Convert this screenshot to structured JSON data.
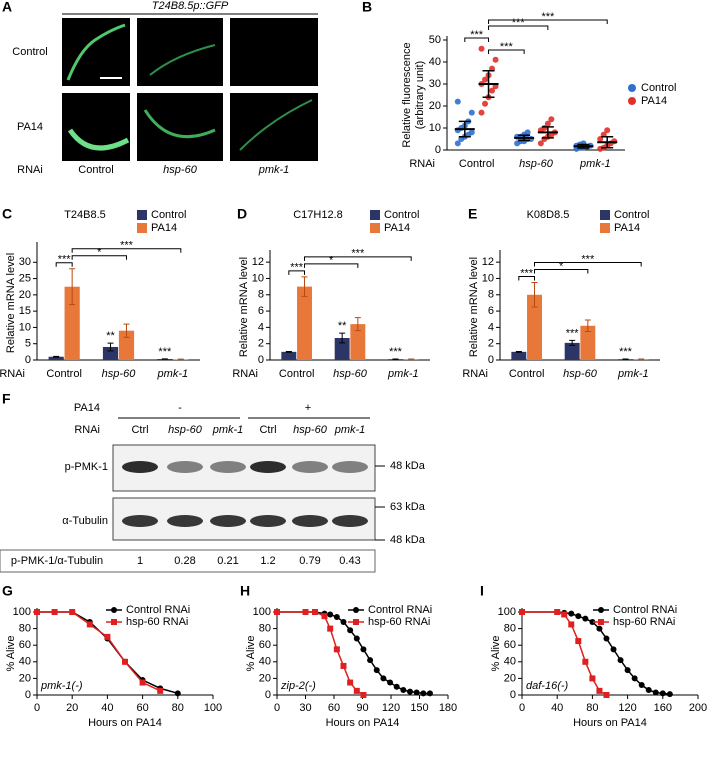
{
  "panel_a": {
    "panel": "A",
    "title": "T24B8.5p::GFP",
    "rows": [
      "Control",
      "PA14"
    ],
    "row_prefix": "RNAi",
    "columns": [
      "Control",
      "hsp-60",
      "pmk-1"
    ]
  },
  "panel_f": {
    "panel": "F",
    "treatment": "PA14",
    "groups": [
      "-",
      "+"
    ],
    "row_prefix": "RNAi",
    "lanes": [
      "Ctrl",
      "hsp-60",
      "pmk-1",
      "Ctrl",
      "hsp-60",
      "pmk-1"
    ],
    "blots": [
      "p-PMK-1",
      "α-Tubulin"
    ],
    "markers": [
      "48 kDa",
      "63 kDa",
      "48 kDa"
    ],
    "ratio_label": "p-PMK-1/α-Tubulin",
    "ratios": [
      1,
      0.28,
      0.21,
      1.2,
      0.79,
      0.43
    ]
  },
  "chart_data": [
    {
      "type": "dot",
      "panel": "B",
      "ylabel": [
        "Relative fluorescence",
        "(arbitrary unit)"
      ],
      "xprefix": "RNAi",
      "categories": [
        "Control",
        "hsp-60",
        "pmk-1"
      ],
      "series": [
        {
          "name": "Control",
          "color": "#2f6fd0",
          "values": [
            9.5,
            5.5,
            1.7
          ],
          "errors": [
            3.5,
            1.2,
            0.8
          ],
          "points": [
            [
              3,
              5,
              6,
              7,
              8,
              9,
              10,
              11,
              13,
              17,
              22
            ],
            [
              3,
              4,
              4,
              5,
              5,
              6,
              6,
              7,
              8
            ],
            [
              0.5,
              1,
              1,
              1.5,
              2,
              2,
              2.5,
              3
            ]
          ]
        },
        {
          "name": "PA14",
          "color": "#e0302a",
          "values": [
            30,
            8,
            3.5
          ],
          "errors": [
            6,
            2.5,
            2.5
          ],
          "points": [
            [
              17,
              21,
              24,
              27,
              29,
              30,
              32,
              34,
              37,
              41,
              46
            ],
            [
              3,
              5,
              6,
              7,
              8,
              9,
              10,
              12,
              14
            ],
            [
              0.5,
              1,
              2,
              3,
              4,
              5,
              7,
              9
            ]
          ]
        }
      ],
      "brackets": [
        "***",
        "***",
        "***",
        "***"
      ],
      "ylim": [
        0,
        50
      ],
      "yticks": [
        0,
        10,
        20,
        30,
        40,
        50
      ]
    },
    {
      "type": "bar",
      "panel": "C",
      "title": "T24B8.5",
      "ylabel": "Relative mRNA level",
      "xprefix": "RNAi",
      "categories": [
        "Control",
        "hsp-60",
        "pmk-1"
      ],
      "series": [
        {
          "name": "Control",
          "color": "#2b3566",
          "values": [
            1,
            4,
            0.3
          ],
          "errors": [
            0.1,
            1.2,
            0.05
          ],
          "stars": [
            null,
            "**",
            "***"
          ]
        },
        {
          "name": "PA14",
          "color": "#e8773a",
          "values": [
            22.5,
            9,
            0.2
          ],
          "errors": [
            5.5,
            2,
            0.05
          ]
        }
      ],
      "brackets": [
        "***",
        "*",
        "***"
      ],
      "ylim": [
        0,
        35
      ],
      "yticks": [
        0,
        5,
        10,
        15,
        20,
        25,
        30
      ]
    },
    {
      "type": "bar",
      "panel": "D",
      "title": "C17H12.8",
      "ylabel": "Relative mRNA level",
      "xprefix": "RNAi",
      "categories": [
        "Control",
        "hsp-60",
        "pmk-1"
      ],
      "series": [
        {
          "name": "Control",
          "color": "#2b3566",
          "values": [
            1,
            2.7,
            0.1
          ],
          "errors": [
            0.05,
            0.6,
            0.03
          ],
          "stars": [
            null,
            "**",
            "***"
          ]
        },
        {
          "name": "PA14",
          "color": "#e8773a",
          "values": [
            9,
            4.4,
            0.1
          ],
          "errors": [
            1.2,
            0.8,
            0.03
          ]
        }
      ],
      "brackets": [
        "***",
        "*",
        "***"
      ],
      "ylim": [
        0,
        13
      ],
      "yticks": [
        0,
        2,
        4,
        6,
        8,
        10,
        12
      ]
    },
    {
      "type": "bar",
      "panel": "E",
      "title": "K08D8.5",
      "ylabel": "Relative mRNA level",
      "xprefix": "RNAi",
      "categories": [
        "Control",
        "hsp-60",
        "pmk-1"
      ],
      "series": [
        {
          "name": "Control",
          "color": "#2b3566",
          "values": [
            1,
            2.1,
            0.1
          ],
          "errors": [
            0.05,
            0.3,
            0.03
          ],
          "stars": [
            null,
            "***",
            "***"
          ]
        },
        {
          "name": "PA14",
          "color": "#e8773a",
          "values": [
            8,
            4.2,
            0.1
          ],
          "errors": [
            1.5,
            0.7,
            0.03
          ]
        }
      ],
      "brackets": [
        "***",
        "*",
        "***"
      ],
      "ylim": [
        0,
        13
      ],
      "yticks": [
        0,
        2,
        4,
        6,
        8,
        10,
        12
      ]
    },
    {
      "type": "line",
      "panel": "G",
      "annotation": "pmk-1(-)",
      "xlabel": "Hours on PA14",
      "ylabel": "% Alive",
      "series": [
        {
          "name": "Control RNAi",
          "color": "#000000",
          "marker": "circle",
          "x": [
            0,
            10,
            20,
            30,
            40,
            50,
            60,
            70,
            80
          ],
          "values": [
            100,
            100,
            100,
            88,
            68,
            40,
            18,
            8,
            2
          ]
        },
        {
          "name": "hsp-60 RNAi",
          "color": "#e02020",
          "marker": "square",
          "x": [
            0,
            10,
            20,
            30,
            40,
            50,
            60,
            70
          ],
          "values": [
            100,
            100,
            100,
            85,
            70,
            40,
            15,
            5
          ]
        }
      ],
      "xlim": [
        0,
        100
      ],
      "xticks": [
        0,
        20,
        40,
        60,
        80,
        100
      ],
      "ylim": [
        0,
        100
      ],
      "yticks": [
        0,
        20,
        40,
        60,
        80,
        100
      ]
    },
    {
      "type": "line",
      "panel": "H",
      "annotation": "zip-2(-)",
      "xlabel": "Hours on PA14",
      "ylabel": "% Alive",
      "series": [
        {
          "name": "Control RNAi",
          "color": "#000000",
          "marker": "circle",
          "x": [
            0,
            30,
            40,
            50,
            56,
            63,
            70,
            77,
            84,
            91,
            98,
            105,
            112,
            119,
            126,
            133,
            140,
            147,
            154,
            161
          ],
          "values": [
            100,
            100,
            100,
            98,
            97,
            94,
            88,
            78,
            68,
            55,
            42,
            30,
            20,
            15,
            10,
            6,
            4,
            3,
            2,
            2
          ]
        },
        {
          "name": "hsp-60 RNAi",
          "color": "#e02020",
          "marker": "square",
          "x": [
            0,
            30,
            40,
            50,
            56,
            63,
            70,
            77,
            84,
            91
          ],
          "values": [
            100,
            100,
            100,
            95,
            80,
            55,
            35,
            15,
            5,
            0
          ]
        }
      ],
      "xlim": [
        0,
        180
      ],
      "xticks": [
        0,
        30,
        60,
        90,
        120,
        150,
        180
      ],
      "ylim": [
        0,
        100
      ],
      "yticks": [
        0,
        20,
        40,
        60,
        80,
        100
      ]
    },
    {
      "type": "line",
      "panel": "I",
      "annotation": "daf-16(-)",
      "xlabel": "Hours on PA14",
      "ylabel": "% Alive",
      "series": [
        {
          "name": "Control RNAi",
          "color": "#000000",
          "marker": "circle",
          "x": [
            0,
            40,
            48,
            56,
            64,
            72,
            80,
            88,
            96,
            104,
            112,
            120,
            128,
            136,
            144,
            152,
            160,
            168
          ],
          "values": [
            100,
            100,
            99,
            98,
            95,
            92,
            88,
            80,
            68,
            55,
            42,
            30,
            20,
            12,
            6,
            3,
            2,
            1
          ]
        },
        {
          "name": "hsp-60 RNAi",
          "color": "#e02020",
          "marker": "square",
          "x": [
            0,
            40,
            48,
            56,
            64,
            72,
            80,
            88,
            96
          ],
          "values": [
            100,
            100,
            97,
            85,
            65,
            40,
            20,
            5,
            0
          ]
        }
      ],
      "xlim": [
        0,
        200
      ],
      "xticks": [
        0,
        40,
        80,
        120,
        160,
        200
      ],
      "ylim": [
        0,
        100
      ],
      "yticks": [
        0,
        20,
        40,
        60,
        80,
        100
      ]
    }
  ]
}
